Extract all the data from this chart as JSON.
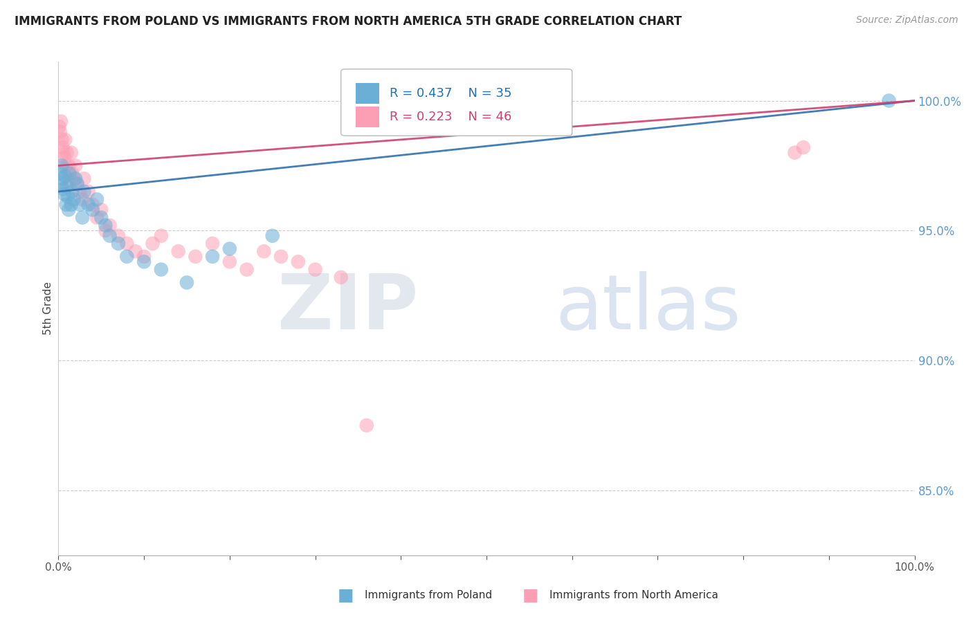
{
  "title": "IMMIGRANTS FROM POLAND VS IMMIGRANTS FROM NORTH AMERICA 5TH GRADE CORRELATION CHART",
  "source": "Source: ZipAtlas.com",
  "ylabel": "5th Grade",
  "watermark_zip": "ZIP",
  "watermark_atlas": "atlas",
  "blue_label": "Immigrants from Poland",
  "pink_label": "Immigrants from North America",
  "blue_R": 0.437,
  "blue_N": 35,
  "pink_R": 0.223,
  "pink_N": 46,
  "blue_color": "#6baed6",
  "pink_color": "#fc9fb5",
  "blue_line_color": "#3070b0",
  "pink_line_color": "#d04070",
  "ytick_labels": [
    "85.0%",
    "90.0%",
    "95.0%",
    "100.0%"
  ],
  "ytick_values": [
    0.85,
    0.9,
    0.95,
    1.0
  ],
  "ylim": [
    0.825,
    1.015
  ],
  "xlim": [
    0.0,
    1.0
  ],
  "blue_x": [
    0.002,
    0.003,
    0.004,
    0.005,
    0.006,
    0.007,
    0.008,
    0.009,
    0.01,
    0.011,
    0.012,
    0.013,
    0.015,
    0.016,
    0.018,
    0.02,
    0.022,
    0.025,
    0.028,
    0.03,
    0.035,
    0.04,
    0.045,
    0.05,
    0.055,
    0.06,
    0.07,
    0.08,
    0.1,
    0.12,
    0.15,
    0.18,
    0.2,
    0.25,
    0.97
  ],
  "blue_y": [
    0.972,
    0.968,
    0.975,
    0.97,
    0.966,
    0.964,
    0.971,
    0.96,
    0.967,
    0.963,
    0.958,
    0.972,
    0.96,
    0.965,
    0.962,
    0.97,
    0.968,
    0.96,
    0.955,
    0.965,
    0.96,
    0.958,
    0.962,
    0.955,
    0.952,
    0.948,
    0.945,
    0.94,
    0.938,
    0.935,
    0.93,
    0.94,
    0.943,
    0.948,
    1.0
  ],
  "pink_x": [
    0.001,
    0.002,
    0.003,
    0.004,
    0.005,
    0.006,
    0.007,
    0.008,
    0.009,
    0.01,
    0.011,
    0.012,
    0.013,
    0.015,
    0.016,
    0.018,
    0.02,
    0.022,
    0.025,
    0.028,
    0.03,
    0.035,
    0.04,
    0.045,
    0.05,
    0.055,
    0.06,
    0.07,
    0.08,
    0.09,
    0.1,
    0.11,
    0.12,
    0.14,
    0.16,
    0.18,
    0.2,
    0.22,
    0.24,
    0.26,
    0.28,
    0.3,
    0.33,
    0.36,
    0.86,
    0.87
  ],
  "pink_y": [
    0.99,
    0.988,
    0.992,
    0.985,
    0.982,
    0.98,
    0.978,
    0.985,
    0.975,
    0.98,
    0.972,
    0.975,
    0.968,
    0.98,
    0.972,
    0.97,
    0.975,
    0.968,
    0.965,
    0.962,
    0.97,
    0.965,
    0.96,
    0.955,
    0.958,
    0.95,
    0.952,
    0.948,
    0.945,
    0.942,
    0.94,
    0.945,
    0.948,
    0.942,
    0.94,
    0.945,
    0.938,
    0.935,
    0.942,
    0.94,
    0.938,
    0.935,
    0.932,
    0.875,
    0.98,
    0.982
  ],
  "blue_trend_x": [
    0.0,
    1.0
  ],
  "blue_trend_y": [
    0.965,
    1.0
  ],
  "pink_trend_x": [
    0.0,
    1.0
  ],
  "pink_trend_y": [
    0.975,
    1.0
  ]
}
